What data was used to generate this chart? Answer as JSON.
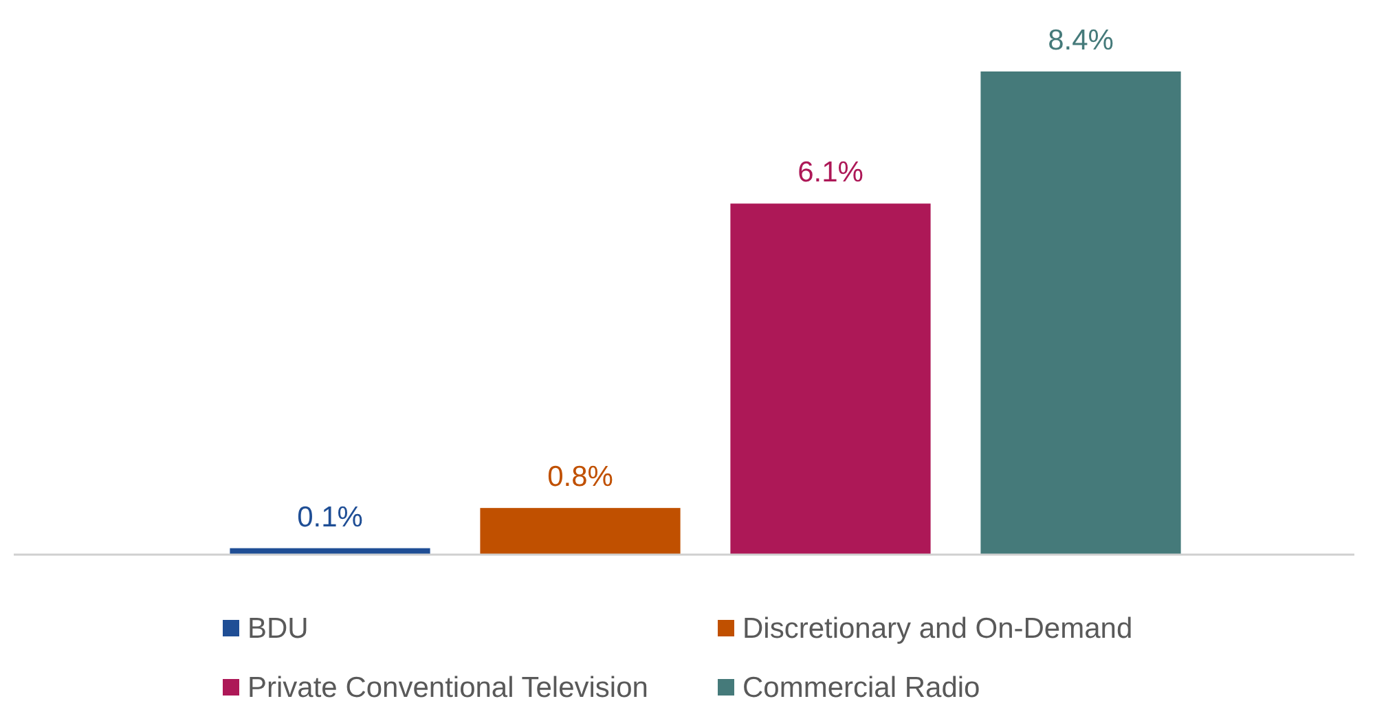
{
  "chart_data": {
    "type": "bar",
    "stacked": true,
    "categories": [
      null,
      null,
      null,
      null
    ],
    "legend": "bottom",
    "series": [
      {
        "name": "BDU",
        "color": "#1f4e95",
        "values": [
          0.1,
          null,
          null,
          null
        ],
        "value_labels": [
          "0.1%",
          null,
          null,
          null
        ]
      },
      {
        "name": "Discretionary and On-Demand",
        "color": "#c05000",
        "values": [
          null,
          0.8,
          null,
          null
        ],
        "value_labels": [
          null,
          "0.8%",
          null,
          null
        ]
      },
      {
        "name": "Private Conventional Television",
        "color": "#ad1857",
        "values": [
          null,
          null,
          6.1,
          null
        ],
        "value_labels": [
          null,
          null,
          "6.1%",
          null
        ]
      },
      {
        "name": "Commercial Radio",
        "color": "#457a7a",
        "values": [
          null,
          null,
          null,
          8.4
        ],
        "value_labels": [
          null,
          null,
          null,
          "8.4%"
        ]
      }
    ]
  }
}
